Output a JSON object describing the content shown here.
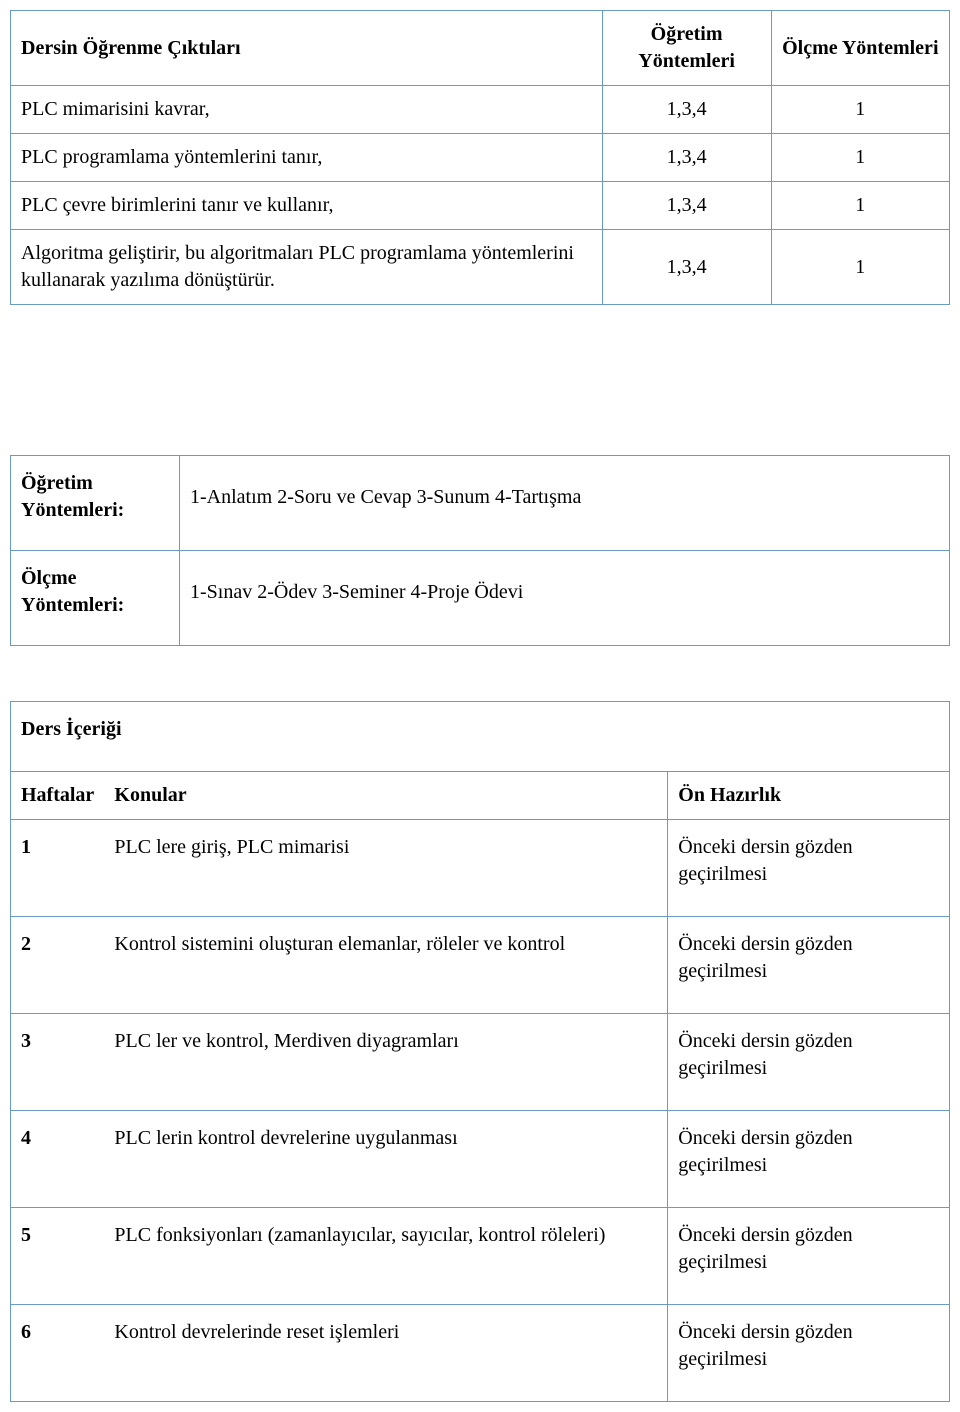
{
  "outcomes_table": {
    "header": {
      "c1": "Dersin Öğrenme Çıktıları",
      "c2": "Öğretim Yöntemleri",
      "c3": "Ölçme Yöntemleri"
    },
    "rows": [
      {
        "c1": "PLC mimarisini kavrar,",
        "c2": "1,3,4",
        "c3": "1"
      },
      {
        "c1": "PLC programlama yöntemlerini tanır,",
        "c2": "1,3,4",
        "c3": "1"
      },
      {
        "c1": "PLC çevre birimlerini tanır ve kullanır,",
        "c2": "1,3,4",
        "c3": "1"
      },
      {
        "c1": "Algoritma geliştirir, bu algoritmaları PLC programlama yöntemlerini kullanarak yazılıma dönüştürür.",
        "c2": "1,3,4",
        "c3": "1"
      }
    ]
  },
  "methods_table": {
    "row1": {
      "label": "Öğretim Yöntemleri:",
      "value": "1-Anlatım  2-Soru ve Cevap  3-Sunum  4-Tartışma"
    },
    "row2": {
      "label": "Ölçme Yöntemleri:",
      "value": "1-Sınav  2-Ödev  3-Seminer  4-Proje Ödevi"
    }
  },
  "content_table": {
    "title": "Ders İçeriği",
    "header": {
      "c1": "Haftalar",
      "c2": "Konular",
      "c3": "Ön Hazırlık"
    },
    "prep_text": "Önceki dersin gözden geçirilmesi",
    "rows": [
      {
        "week": "1",
        "topic": "PLC lere giriş, PLC mimarisi"
      },
      {
        "week": "2",
        "topic": "Kontrol sistemini oluşturan elemanlar, röleler ve kontrol"
      },
      {
        "week": "3",
        "topic": "PLC ler ve kontrol, Merdiven diyagramları"
      },
      {
        "week": "4",
        "topic": "PLC lerin kontrol devrelerine uygulanması"
      },
      {
        "week": "5",
        "topic": "PLC fonksiyonları (zamanlayıcılar, sayıcılar, kontrol röleleri)"
      },
      {
        "week": "6",
        "topic": "Kontrol devrelerinde reset işlemleri"
      }
    ]
  },
  "columns": {
    "outcomes": {
      "c1_width": "63%",
      "c2_width": "18%",
      "c3_width": "19%"
    },
    "methods": {
      "c1_width": "18%",
      "c2_width": "82%"
    },
    "content": {
      "c1_width": "10%",
      "c2_width": "60%",
      "c3_width": "30%"
    }
  }
}
